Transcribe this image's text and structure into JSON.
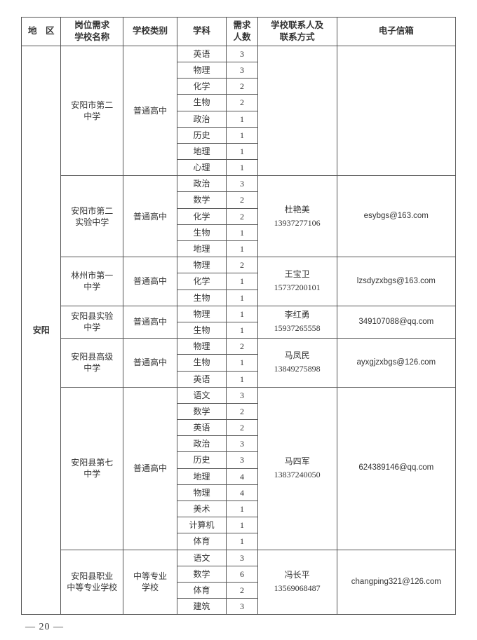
{
  "header": {
    "region": "地　区",
    "school": "岗位需求\n学校名称",
    "type": "学校类别",
    "subject": "学科",
    "count": "需求\n人数",
    "contact": "学校联系人及\n联系方式",
    "email": "电子信箱"
  },
  "region": "安阳",
  "schools": [
    {
      "name": "安阳市第二\n中学",
      "type": "普通高中",
      "contact": "",
      "email": "",
      "subjects": [
        {
          "s": "英语",
          "n": 3
        },
        {
          "s": "物理",
          "n": 3
        },
        {
          "s": "化学",
          "n": 2
        },
        {
          "s": "生物",
          "n": 2
        },
        {
          "s": "政治",
          "n": 1
        },
        {
          "s": "历史",
          "n": 1
        },
        {
          "s": "地理",
          "n": 1
        },
        {
          "s": "心理",
          "n": 1
        }
      ]
    },
    {
      "name": "安阳市第二\n实验中学",
      "type": "普通高中",
      "contact": "杜艳美\n13937277106",
      "email": "esybgs@163.com",
      "subjects": [
        {
          "s": "政治",
          "n": 3
        },
        {
          "s": "数学",
          "n": 2
        },
        {
          "s": "化学",
          "n": 2
        },
        {
          "s": "生物",
          "n": 1
        },
        {
          "s": "地理",
          "n": 1
        }
      ]
    },
    {
      "name": "林州市第一\n中学",
      "type": "普通高中",
      "contact": "王宝卫\n15737200101",
      "email": "lzsdyzxbgs@163.com",
      "subjects": [
        {
          "s": "物理",
          "n": 2
        },
        {
          "s": "化学",
          "n": 1
        },
        {
          "s": "生物",
          "n": 1
        }
      ]
    },
    {
      "name": "安阳县实验\n中学",
      "type": "普通高中",
      "contact": "李红勇\n15937265558",
      "email": "349107088@qq.com",
      "subjects": [
        {
          "s": "物理",
          "n": 1
        },
        {
          "s": "生物",
          "n": 1
        }
      ]
    },
    {
      "name": "安阳县高级\n中学",
      "type": "普通高中",
      "contact": "马凤民\n13849275898",
      "email": "ayxgjzxbgs@126.com",
      "subjects": [
        {
          "s": "物理",
          "n": 2
        },
        {
          "s": "生物",
          "n": 1
        },
        {
          "s": "英语",
          "n": 1
        }
      ]
    },
    {
      "name": "安阳县第七\n中学",
      "type": "普通高中",
      "contact": "马四军\n13837240050",
      "email": "624389146@qq.com",
      "subjects": [
        {
          "s": "语文",
          "n": 3
        },
        {
          "s": "数学",
          "n": 2
        },
        {
          "s": "英语",
          "n": 2
        },
        {
          "s": "政治",
          "n": 3
        },
        {
          "s": "历史",
          "n": 3
        },
        {
          "s": "地理",
          "n": 4
        },
        {
          "s": "物理",
          "n": 4
        },
        {
          "s": "美术",
          "n": 1
        },
        {
          "s": "计算机",
          "n": 1
        },
        {
          "s": "体育",
          "n": 1
        }
      ]
    },
    {
      "name": "安阳县职业\n中等专业学校",
      "type": "中等专业\n学校",
      "contact": "冯长平\n13569068487",
      "email": "changping321@126.com",
      "subjects": [
        {
          "s": "语文",
          "n": 3
        },
        {
          "s": "数学",
          "n": 6
        },
        {
          "s": "体育",
          "n": 2
        },
        {
          "s": "建筑",
          "n": 3
        }
      ]
    }
  ],
  "page_number": "— 20 —",
  "styles": {
    "font_family": "SimSun",
    "font_size_body": 12,
    "border_color": "#555555",
    "background": "#ffffff",
    "text_color": "#333333"
  }
}
